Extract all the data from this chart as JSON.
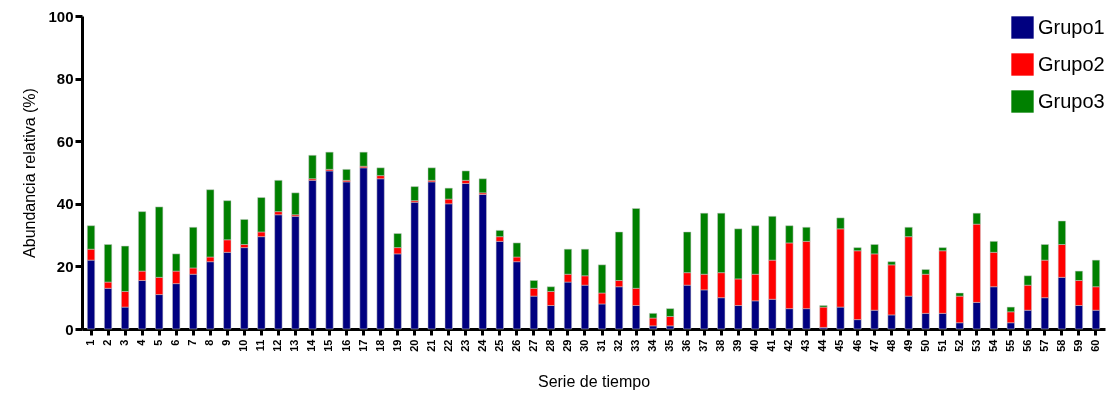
{
  "chart_data": {
    "type": "bar",
    "stacked": true,
    "xlabel": "Serie de tiempo",
    "ylabel": "Abundancia relativa (%)",
    "ylim": [
      0,
      100
    ],
    "yticks": [
      0,
      20,
      40,
      60,
      80,
      100
    ],
    "grid": false,
    "legend": "top right",
    "categories": [
      "1",
      "2",
      "3",
      "4",
      "5",
      "6",
      "7",
      "8",
      "9",
      "10",
      "11",
      "12",
      "13",
      "14",
      "15",
      "16",
      "17",
      "18",
      "19",
      "20",
      "21",
      "22",
      "23",
      "24",
      "25",
      "26",
      "27",
      "28",
      "29",
      "30",
      "31",
      "32",
      "33",
      "34",
      "35",
      "36",
      "37",
      "38",
      "39",
      "40",
      "41",
      "42",
      "43",
      "44",
      "45",
      "46",
      "47",
      "48",
      "49",
      "50",
      "51",
      "52",
      "53",
      "54",
      "55",
      "56",
      "57",
      "58",
      "59",
      "60"
    ],
    "series": [
      {
        "name": "Grupo1",
        "color": "#000080",
        "values": [
          22,
          13,
          7,
          15.5,
          11,
          14.5,
          17.5,
          21.5,
          24.5,
          26,
          29.5,
          36.5,
          36,
          47.5,
          50.5,
          47,
          51.5,
          48,
          24,
          40.5,
          47,
          40,
          46.5,
          43,
          28,
          21.5,
          10.5,
          7.5,
          15,
          14,
          8,
          13.5,
          7.5,
          1,
          1,
          14,
          12.5,
          10,
          7.5,
          9,
          9.5,
          6.5,
          6.5,
          0.5,
          7,
          3,
          6,
          4.5,
          10.5,
          5,
          5,
          2,
          8.5,
          13.5,
          2,
          6,
          10,
          16.5,
          7.5,
          6
        ]
      },
      {
        "name": "Grupo2",
        "color": "#ff0000",
        "values": [
          3.5,
          2,
          5,
          3,
          5.5,
          4,
          2,
          1.5,
          4,
          1,
          1.5,
          1,
          0.5,
          0.5,
          0.5,
          0.5,
          0.5,
          1,
          2,
          0.5,
          0.5,
          1.5,
          1,
          0.5,
          1.5,
          1.5,
          2.5,
          4.5,
          2.5,
          3,
          3.5,
          2,
          5.5,
          2.5,
          3,
          4,
          5,
          8,
          8.5,
          8.5,
          12.5,
          21,
          21.5,
          6.5,
          25,
          22,
          18,
          16,
          19,
          12.5,
          20,
          8.5,
          25,
          11,
          3.5,
          8,
          12,
          10.5,
          8,
          7.5
        ]
      },
      {
        "name": "Grupo3",
        "color": "#008000",
        "values": [
          7.5,
          12,
          14.5,
          19,
          22.5,
          5.5,
          13,
          21.5,
          12.5,
          8,
          11,
          10,
          7,
          7.5,
          5.5,
          3.5,
          4.5,
          2.5,
          4.5,
          4.5,
          4,
          3.5,
          3,
          4.5,
          2,
          4.5,
          2.5,
          1.5,
          8,
          8.5,
          9,
          15.5,
          25.5,
          1.5,
          2.5,
          13,
          19.5,
          19,
          16,
          15.5,
          14,
          5.5,
          4.5,
          0.5,
          3.5,
          1,
          3,
          1,
          3,
          1.5,
          1,
          1,
          3.5,
          3.5,
          1.5,
          3,
          5,
          7.5,
          3,
          8.5
        ]
      }
    ]
  }
}
